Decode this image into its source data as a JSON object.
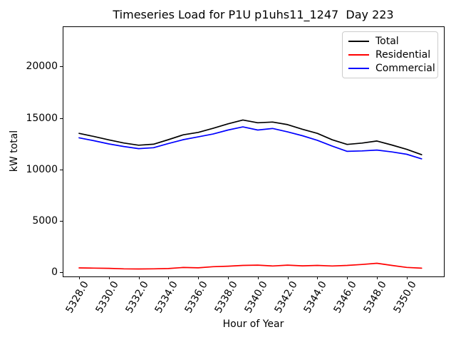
{
  "chart_data": {
    "type": "line",
    "title": "Timeseries Load for P1U p1uhs11_1247  Day 223",
    "xlabel": "Hour of Year",
    "ylabel": "kW total",
    "x": [
      5328,
      5329,
      5330,
      5331,
      5332,
      5333,
      5334,
      5335,
      5336,
      5337,
      5338,
      5339,
      5340,
      5341,
      5342,
      5343,
      5344,
      5345,
      5346,
      5347,
      5348,
      5349,
      5350,
      5351
    ],
    "series": [
      {
        "name": "Total",
        "color": "#000000",
        "values": [
          13500,
          13200,
          12870,
          12570,
          12350,
          12450,
          12890,
          13360,
          13600,
          13990,
          14430,
          14800,
          14530,
          14600,
          14350,
          13900,
          13500,
          12880,
          12430,
          12560,
          12760,
          12370,
          11950,
          11430
        ]
      },
      {
        "name": "Residential",
        "color": "#ff0000",
        "values": [
          430,
          410,
          390,
          340,
          330,
          340,
          370,
          470,
          440,
          550,
          600,
          670,
          700,
          620,
          700,
          630,
          670,
          620,
          670,
          760,
          880,
          670,
          480,
          400
        ]
      },
      {
        "name": "Commercial",
        "color": "#0000ff",
        "values": [
          13070,
          12790,
          12480,
          12230,
          12020,
          12110,
          12520,
          12890,
          13160,
          13440,
          13830,
          14130,
          13830,
          13980,
          13650,
          13270,
          12830,
          12260,
          11760,
          11800,
          11880,
          11700,
          11470,
          11030
        ]
      }
    ],
    "xticks": {
      "values": [
        5328,
        5330,
        5332,
        5334,
        5336,
        5338,
        5340,
        5342,
        5344,
        5346,
        5348,
        5350
      ],
      "labels": [
        "5328.0",
        "5330.0",
        "5332.0",
        "5334.0",
        "5336.0",
        "5338.0",
        "5340.0",
        "5342.0",
        "5344.0",
        "5346.0",
        "5348.0",
        "5350.0"
      ],
      "rotation_deg": 60
    },
    "yticks": {
      "values": [
        0,
        5000,
        10000,
        15000,
        20000
      ],
      "labels": [
        "0",
        "5000",
        "10000",
        "15000",
        "20000"
      ]
    },
    "xlim": [
      5326.9,
      5352.5
    ],
    "ylim": [
      -400,
      23900
    ],
    "legend": {
      "position": "upper right",
      "entries": [
        "Total",
        "Residential",
        "Commercial"
      ]
    },
    "grid": false,
    "background": "#ffffff",
    "axes_color": "#000000"
  }
}
